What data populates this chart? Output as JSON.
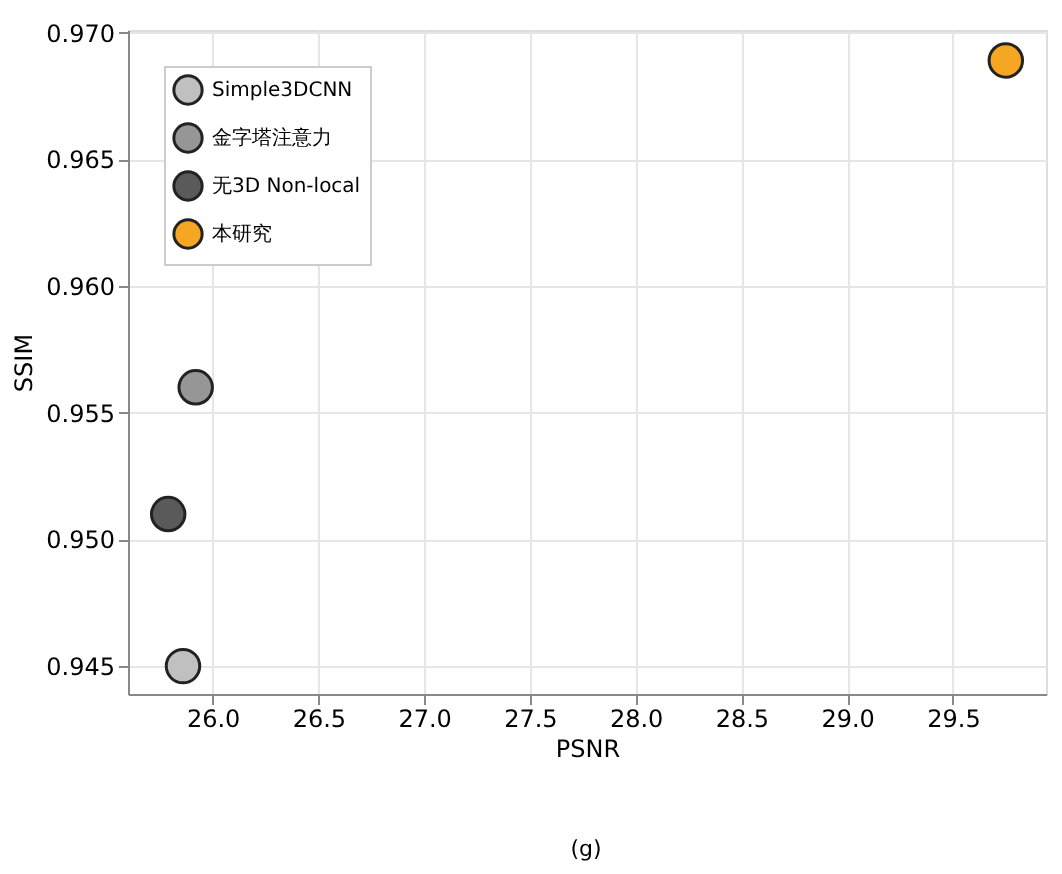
{
  "chart_data": {
    "type": "scatter",
    "xlabel": "PSNR",
    "ylabel": "SSIM",
    "series": [
      {
        "name": "Simple3DCNN",
        "color": "#c0c0c0",
        "x": [
          25.86
        ],
        "values": [
          0.945
        ]
      },
      {
        "name": "金字塔注意力",
        "color": "#969696",
        "x": [
          25.92
        ],
        "values": [
          0.956
        ]
      },
      {
        "name": "无3D Non-local",
        "color": "#5a5a5a",
        "x": [
          25.79
        ],
        "values": [
          0.951
        ]
      },
      {
        "name": "本研究",
        "color": "#f5a623",
        "x": [
          29.75
        ],
        "values": [
          0.9689
        ]
      }
    ],
    "xlim": [
      25.6,
      29.94
    ],
    "ylim": [
      0.9439,
      0.9701
    ],
    "xticks": [
      {
        "value": 26.0,
        "label": "26.0"
      },
      26.5,
      {
        "value": 27.0,
        "label": "27.0"
      },
      27.5,
      {
        "value": 28.0,
        "label": "28.0"
      },
      28.5,
      {
        "value": 29.0,
        "label": "29.0"
      },
      29.5
    ],
    "yticks": [
      0.945,
      {
        "value": 0.95,
        "label": "0.950"
      },
      0.955,
      {
        "value": 0.96,
        "label": "0.960"
      },
      0.965,
      {
        "value": 0.97,
        "label": "0.970"
      }
    ],
    "grid": true,
    "legend": "top left",
    "marker": "circle",
    "annotations": [
      "(g)"
    ]
  }
}
